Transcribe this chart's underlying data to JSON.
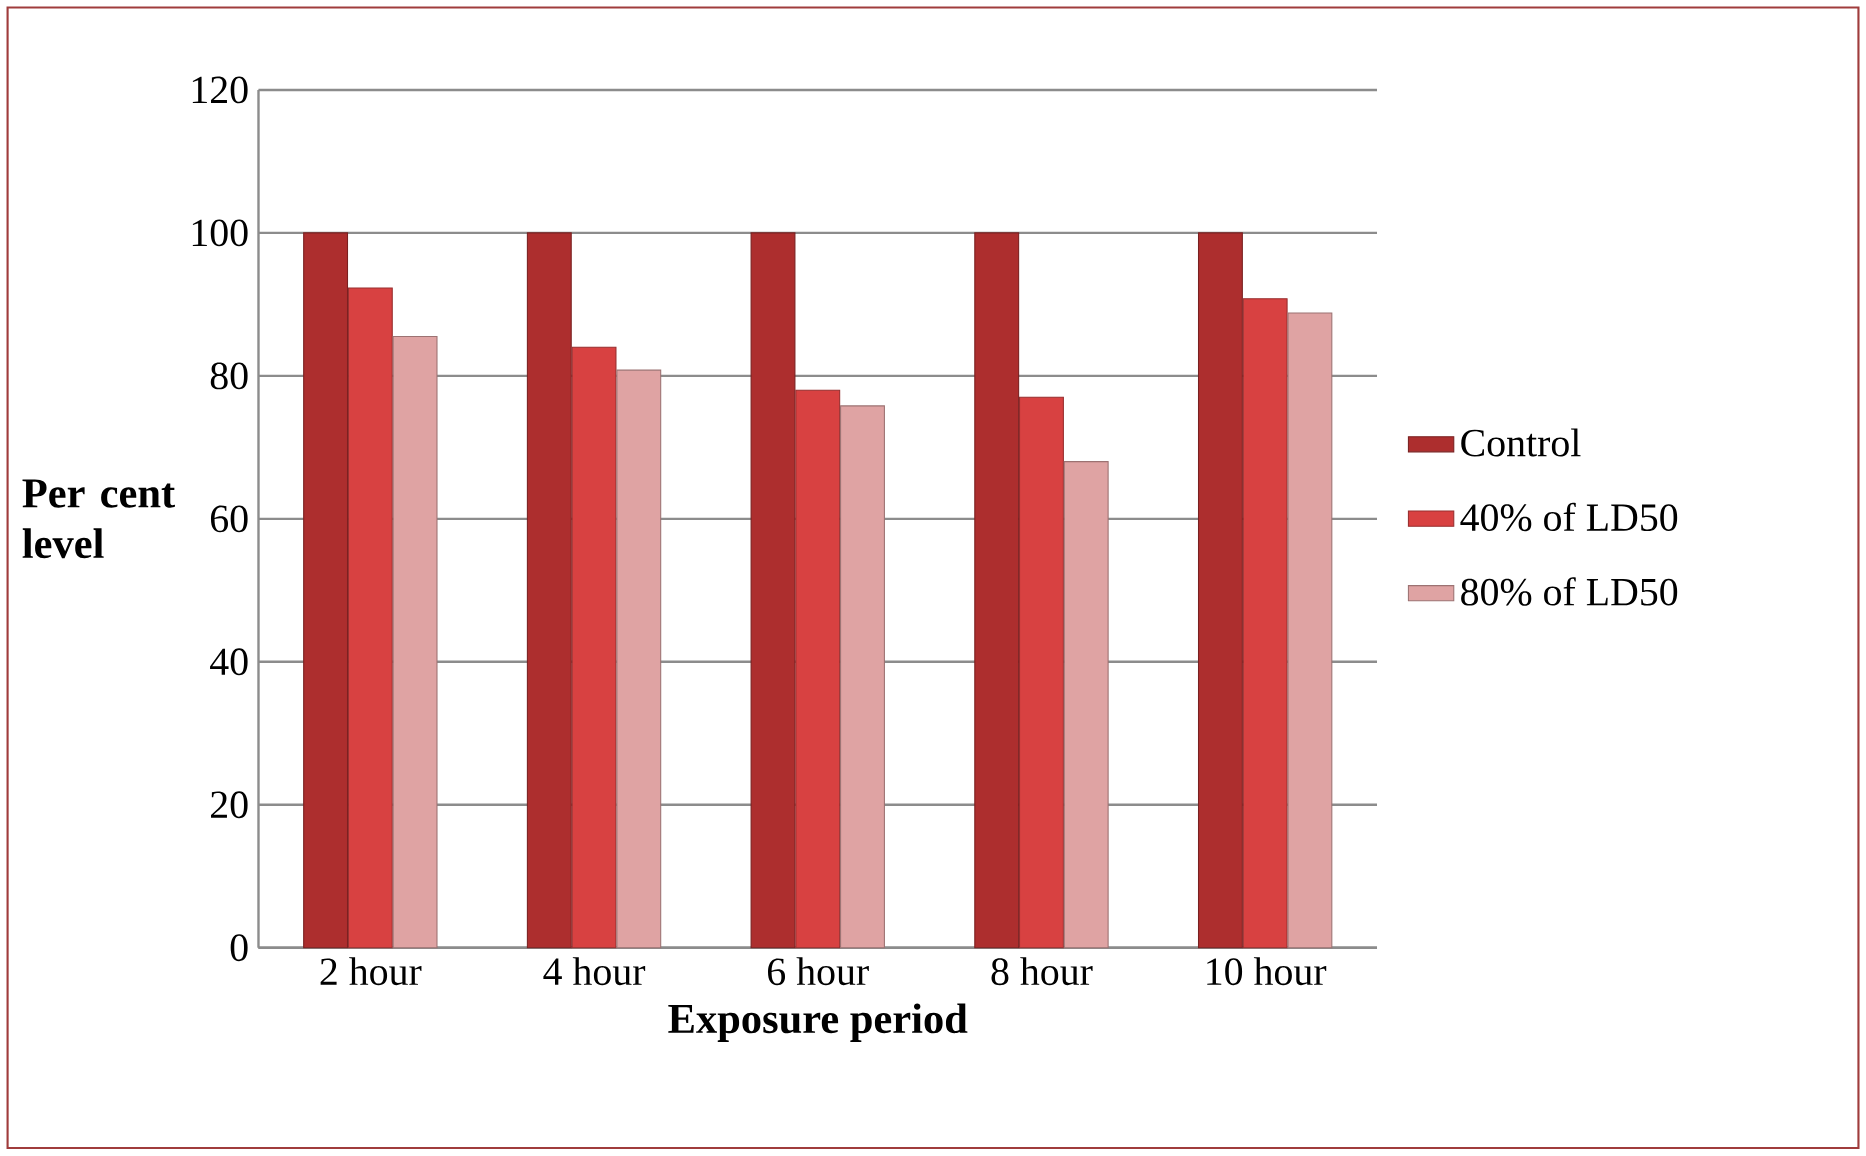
{
  "chart_data": {
    "type": "bar",
    "xlabel": "Exposure period",
    "ylabel": "Per cent level",
    "categories": [
      "2 hour",
      "4 hour",
      "6 hour",
      "8 hour",
      "10 hour"
    ],
    "series": [
      {
        "name": "Control",
        "color": "#ad2e2e",
        "values": [
          100,
          100,
          100,
          100,
          100
        ]
      },
      {
        "name": "40% of LD50",
        "color": "#d84141",
        "values": [
          92.3,
          84,
          78,
          77,
          90.8
        ]
      },
      {
        "name": "80% of LD50",
        "color": "#dfa3a3",
        "values": [
          85.5,
          80.8,
          75.8,
          68,
          88.8
        ]
      }
    ],
    "ylim": [
      0,
      120
    ],
    "yticks": [
      0,
      20,
      40,
      60,
      80,
      100,
      120
    ],
    "grid": "y",
    "legend": "right"
  }
}
